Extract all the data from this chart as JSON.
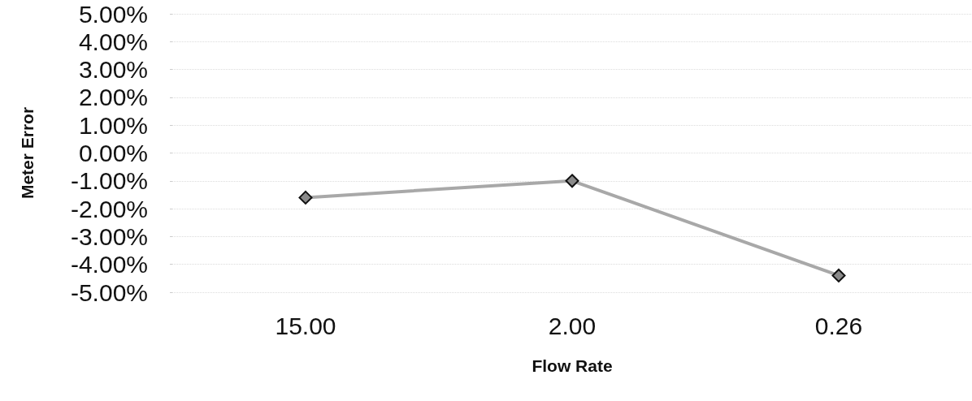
{
  "chart_data": {
    "type": "line",
    "xlabel": "Flow Rate",
    "ylabel": "Meter Error",
    "categories": [
      "15.00",
      "2.00",
      "0.26"
    ],
    "series": [
      {
        "color": "#a8a8a8",
        "values": [
          -1.6,
          -1.0,
          -4.4
        ]
      }
    ],
    "ylim": [
      -5,
      5
    ],
    "yticks": [
      {
        "value": 5,
        "label": "5.00%"
      },
      {
        "value": 4,
        "label": "4.00%"
      },
      {
        "value": 3,
        "label": "3.00%"
      },
      {
        "value": 2,
        "label": "2.00%"
      },
      {
        "value": 1,
        "label": "1.00%"
      },
      {
        "value": 0,
        "label": "0.00%"
      },
      {
        "value": -1,
        "label": "-1.00%"
      },
      {
        "value": -2,
        "label": "-2.00%"
      },
      {
        "value": -3,
        "label": "-3.00%"
      },
      {
        "value": -4,
        "label": "-4.00%"
      },
      {
        "value": -5,
        "label": "-5.00%"
      }
    ],
    "grid": "y",
    "marker": "diamond",
    "line_style": "solid"
  }
}
